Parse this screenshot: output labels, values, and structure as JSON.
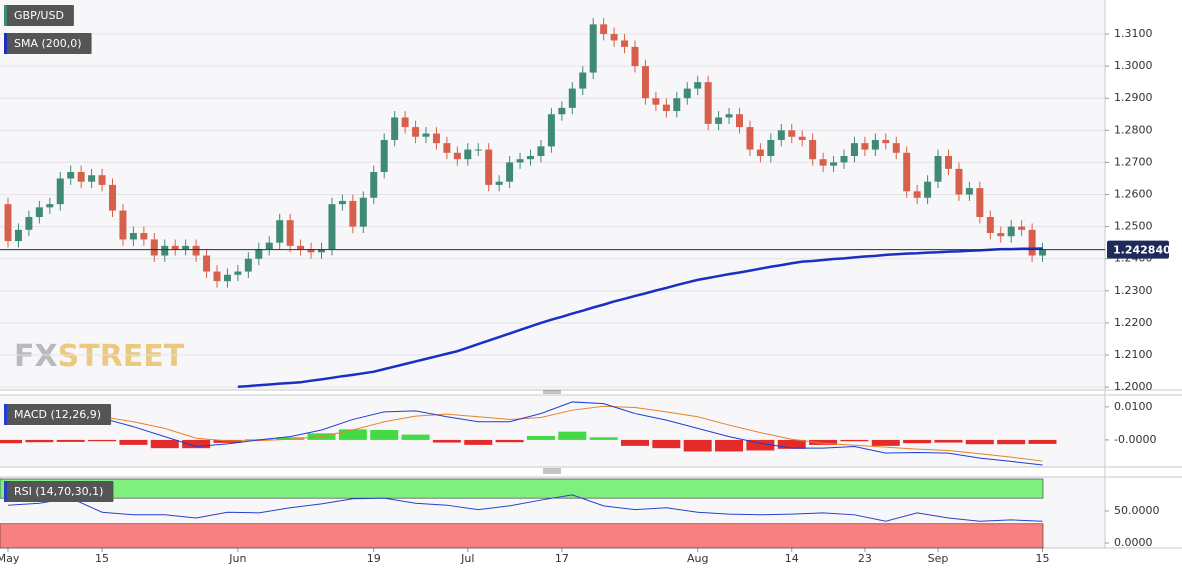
{
  "chart_data": [
    {
      "type": "candlestick",
      "name": "GBP/USD",
      "categories": [
        "May",
        null,
        null,
        null,
        null,
        null,
        null,
        null,
        null,
        "15",
        null,
        null,
        null,
        null,
        null,
        null,
        null,
        null,
        null,
        null,
        null,
        null,
        "Jun",
        null,
        null,
        null,
        null,
        null,
        null,
        null,
        null,
        null,
        null,
        null,
        null,
        "19",
        null,
        null,
        null,
        null,
        null,
        null,
        null,
        null,
        "Jul",
        null,
        null,
        null,
        null,
        null,
        null,
        null,
        null,
        "17",
        null,
        null,
        null,
        null,
        null,
        null,
        null,
        null,
        null,
        null,
        null,
        null,
        "Aug",
        null,
        null,
        null,
        null,
        null,
        null,
        null,
        null,
        "14",
        null,
        null,
        null,
        null,
        null,
        null,
        "23",
        null,
        null,
        null,
        null,
        null,
        null,
        "Sep",
        null,
        null,
        null,
        null,
        null,
        null,
        null,
        null,
        null,
        "15"
      ],
      "open": [
        1.257,
        1.2455,
        1.249,
        1.253,
        1.256,
        1.257,
        1.265,
        1.267,
        1.264,
        1.266,
        1.263,
        1.255,
        1.246,
        1.248,
        1.246,
        1.241,
        1.244,
        1.243,
        1.244,
        1.241,
        1.236,
        1.233,
        1.235,
        1.236,
        1.24,
        1.243,
        1.245,
        1.252,
        1.244,
        1.243,
        1.242,
        1.243,
        1.257,
        1.258,
        1.25,
        1.259,
        1.267,
        1.277,
        1.284,
        1.281,
        1.278,
        1.279,
        1.276,
        1.273,
        1.271,
        1.274,
        1.274,
        1.263,
        1.264,
        1.27,
        1.271,
        1.272,
        1.275,
        1.285,
        1.287,
        1.293,
        1.298,
        1.313,
        1.31,
        1.308,
        1.306,
        1.3,
        1.29,
        1.288,
        1.286,
        1.29,
        1.293,
        1.295,
        1.282,
        1.284,
        1.285,
        1.281,
        1.274,
        1.272,
        1.277,
        1.28,
        1.278,
        1.277,
        1.271,
        1.269,
        1.27,
        1.272,
        1.276,
        1.274,
        1.277,
        1.276,
        1.273,
        1.261,
        1.259,
        1.264,
        1.272,
        1.268,
        1.26,
        1.262,
        1.253,
        1.248,
        1.247,
        1.25,
        1.249,
        1.241
      ],
      "high": [
        1.259,
        1.251,
        1.255,
        1.258,
        1.259,
        1.267,
        1.269,
        1.269,
        1.268,
        1.268,
        1.265,
        1.257,
        1.25,
        1.25,
        1.248,
        1.246,
        1.246,
        1.246,
        1.246,
        1.243,
        1.238,
        1.237,
        1.238,
        1.242,
        1.245,
        1.247,
        1.254,
        1.254,
        1.246,
        1.245,
        1.245,
        1.259,
        1.26,
        1.26,
        1.261,
        1.269,
        1.279,
        1.286,
        1.286,
        1.283,
        1.281,
        1.281,
        1.278,
        1.275,
        1.276,
        1.276,
        1.276,
        1.266,
        1.272,
        1.273,
        1.274,
        1.277,
        1.287,
        1.289,
        1.295,
        1.3,
        1.315,
        1.315,
        1.312,
        1.31,
        1.308,
        1.302,
        1.292,
        1.29,
        1.292,
        1.295,
        1.297,
        1.297,
        1.286,
        1.287,
        1.287,
        1.283,
        1.276,
        1.279,
        1.282,
        1.282,
        1.28,
        1.279,
        1.273,
        1.272,
        1.274,
        1.278,
        1.278,
        1.279,
        1.279,
        1.278,
        1.275,
        1.263,
        1.266,
        1.274,
        1.274,
        1.27,
        1.264,
        1.264,
        1.255,
        1.25,
        1.252,
        1.252,
        1.251,
        1.245
      ],
      "low": [
        1.2435,
        1.2435,
        1.247,
        1.251,
        1.254,
        1.255,
        1.263,
        1.262,
        1.262,
        1.261,
        1.253,
        1.244,
        1.244,
        1.244,
        1.239,
        1.239,
        1.241,
        1.241,
        1.239,
        1.234,
        1.231,
        1.231,
        1.233,
        1.234,
        1.238,
        1.241,
        1.243,
        1.242,
        1.241,
        1.24,
        1.24,
        1.241,
        1.255,
        1.248,
        1.248,
        1.257,
        1.265,
        1.275,
        1.279,
        1.276,
        1.276,
        1.274,
        1.271,
        1.269,
        1.269,
        1.272,
        1.261,
        1.261,
        1.262,
        1.268,
        1.269,
        1.27,
        1.273,
        1.283,
        1.285,
        1.291,
        1.296,
        1.308,
        1.306,
        1.304,
        1.298,
        1.288,
        1.286,
        1.284,
        1.284,
        1.288,
        1.291,
        1.28,
        1.28,
        1.282,
        1.279,
        1.272,
        1.27,
        1.27,
        1.275,
        1.276,
        1.275,
        1.269,
        1.267,
        1.267,
        1.268,
        1.27,
        1.272,
        1.272,
        1.274,
        1.271,
        1.259,
        1.257,
        1.257,
        1.262,
        1.266,
        1.258,
        1.258,
        1.251,
        1.246,
        1.245,
        1.245,
        1.247,
        1.239,
        1.239
      ],
      "close": [
        1.2455,
        1.249,
        1.253,
        1.256,
        1.257,
        1.265,
        1.267,
        1.264,
        1.266,
        1.263,
        1.255,
        1.246,
        1.248,
        1.246,
        1.241,
        1.244,
        1.243,
        1.244,
        1.241,
        1.236,
        1.233,
        1.235,
        1.236,
        1.24,
        1.243,
        1.245,
        1.252,
        1.244,
        1.243,
        1.242,
        1.243,
        1.257,
        1.258,
        1.25,
        1.259,
        1.267,
        1.277,
        1.284,
        1.281,
        1.278,
        1.279,
        1.276,
        1.273,
        1.271,
        1.274,
        1.274,
        1.263,
        1.264,
        1.27,
        1.271,
        1.272,
        1.275,
        1.285,
        1.287,
        1.293,
        1.298,
        1.313,
        1.31,
        1.308,
        1.306,
        1.3,
        1.29,
        1.288,
        1.286,
        1.29,
        1.293,
        1.295,
        1.282,
        1.284,
        1.285,
        1.281,
        1.274,
        1.272,
        1.277,
        1.28,
        1.278,
        1.277,
        1.271,
        1.269,
        1.27,
        1.272,
        1.276,
        1.274,
        1.277,
        1.276,
        1.273,
        1.261,
        1.259,
        1.264,
        1.272,
        1.268,
        1.26,
        1.262,
        1.253,
        1.248,
        1.247,
        1.25,
        1.249,
        1.241,
        1.24284
      ],
      "up_color": "#3f8a74",
      "down_color": "#d6604c",
      "series": [
        {
          "name": "SMA (200,0)",
          "color": "#1b2fc2",
          "values": [
            null,
            null,
            null,
            null,
            null,
            null,
            null,
            null,
            null,
            null,
            null,
            null,
            null,
            null,
            null,
            null,
            null,
            null,
            null,
            null,
            null,
            null,
            1.2001,
            1.2003,
            1.2006,
            1.2008,
            1.2011,
            1.2013,
            1.2015,
            1.202,
            1.2024,
            1.2029,
            1.2034,
            1.2038,
            1.2043,
            1.2048,
            1.2056,
            1.2064,
            1.2072,
            1.208,
            1.2088,
            1.2096,
            1.2104,
            1.2112,
            1.2123,
            1.2134,
            1.2145,
            1.2156,
            1.2167,
            1.2178,
            1.2189,
            1.22,
            1.221,
            1.2219,
            1.2229,
            1.2238,
            1.2248,
            1.2257,
            1.2267,
            1.2275,
            1.2284,
            1.2292,
            1.2301,
            1.2309,
            1.2318,
            1.2326,
            1.2334,
            1.234,
            1.2346,
            1.2352,
            1.2357,
            1.2363,
            1.2369,
            1.2375,
            1.238,
            1.2386,
            1.2391,
            1.2393,
            1.2396,
            1.2399,
            1.2401,
            1.2404,
            1.2407,
            1.2409,
            1.2412,
            1.2414,
            1.2416,
            1.2417,
            1.2419,
            1.242,
            1.2422,
            1.2423,
            1.2425,
            1.2426,
            1.2428,
            1.243,
            1.243,
            1.2431,
            1.2431,
            1.2432
          ]
        }
      ],
      "last_price": {
        "value": 1.24284,
        "label": "1.242840"
      },
      "ylim": [
        1.1991,
        1.3206
      ],
      "yticks": [
        {
          "value": 1.2,
          "label": "1.2000"
        },
        {
          "value": 1.21,
          "label": "1.2100"
        },
        {
          "value": 1.22,
          "label": "1.2200"
        },
        {
          "value": 1.23,
          "label": "1.2300"
        },
        {
          "value": 1.24,
          "label": "1.2400"
        },
        {
          "value": 1.25,
          "label": "1.2500"
        },
        {
          "value": 1.26,
          "label": "1.2600"
        },
        {
          "value": 1.27,
          "label": "1.2700"
        },
        {
          "value": 1.28,
          "label": "1.2800"
        },
        {
          "value": 1.29,
          "label": "1.2900"
        },
        {
          "value": 1.3,
          "label": "1.3000"
        },
        {
          "value": 1.31,
          "label": "1.3100"
        }
      ],
      "grid": true,
      "watermark": {
        "prefix": "FX",
        "suffix": "STREET"
      }
    },
    {
      "type": "macd",
      "name": "MACD (12,26,9)",
      "x": [
        0,
        3,
        6,
        9,
        12,
        15,
        18,
        21,
        24,
        27,
        30,
        33,
        36,
        39,
        42,
        45,
        48,
        51,
        54,
        57,
        60,
        63,
        66,
        69,
        72,
        75,
        78,
        81,
        84,
        87,
        90,
        93,
        96,
        99
      ],
      "xlim": [
        -0.77,
        104.98
      ],
      "macd": {
        "color": "#1d3ed4",
        "values": [
          0.008,
          0.0078,
          0.0072,
          0.0066,
          0.004,
          0.001,
          -0.002,
          -0.0012,
          0.0,
          0.001,
          0.003,
          0.0062,
          0.0085,
          0.0088,
          0.007,
          0.0055,
          0.0055,
          0.008,
          0.0115,
          0.011,
          0.008,
          0.006,
          0.0035,
          0.001,
          -0.001,
          -0.0025,
          -0.0025,
          -0.002,
          -0.004,
          -0.0038,
          -0.004,
          -0.0055,
          -0.0065,
          -0.0076
        ]
      },
      "signal": {
        "color": "#e8812a",
        "values": [
          0.009,
          0.0085,
          0.0078,
          0.007,
          0.0055,
          0.0035,
          0.0005,
          -0.0003,
          -0.0002,
          0.0002,
          0.001,
          0.003,
          0.0055,
          0.0072,
          0.0078,
          0.007,
          0.0062,
          0.0068,
          0.009,
          0.0102,
          0.0098,
          0.0085,
          0.007,
          0.0045,
          0.0022,
          0.0002,
          -0.001,
          -0.0016,
          -0.0022,
          -0.0028,
          -0.0032,
          -0.0042,
          -0.0052,
          -0.0064
        ]
      },
      "histogram": {
        "up_color": "#2fd62f",
        "down_color": "#e01414",
        "values": [
          -0.001,
          -0.0007,
          -0.0006,
          -0.0004,
          -0.0015,
          -0.0025,
          -0.0025,
          -0.0009,
          0.0002,
          0.0008,
          0.002,
          0.0032,
          0.003,
          0.0016,
          -0.0008,
          -0.0015,
          -0.0007,
          0.0012,
          0.0025,
          0.0008,
          -0.0018,
          -0.0025,
          -0.0035,
          -0.0035,
          -0.0032,
          -0.0027,
          -0.0015,
          -0.0004,
          -0.0018,
          -0.001,
          -0.0008,
          -0.0013,
          -0.0013,
          -0.0012
        ]
      },
      "ylim": [
        -0.0082,
        0.0136
      ],
      "yticks": [
        {
          "value": 0,
          "label": "-0.0000"
        },
        {
          "value": 0.01,
          "label": "0.0100"
        }
      ]
    },
    {
      "type": "rsi",
      "name": "RSI (14,70,30,1)",
      "x": [
        0,
        3,
        6,
        9,
        12,
        15,
        18,
        21,
        24,
        27,
        30,
        33,
        36,
        39,
        42,
        45,
        48,
        51,
        54,
        57,
        60,
        63,
        66,
        69,
        72,
        75,
        78,
        81,
        84,
        87,
        90,
        93,
        96,
        99
      ],
      "xlim": [
        -0.77,
        104.98
      ],
      "color": "#2a3fc8",
      "values": [
        59,
        62,
        70,
        48,
        44,
        44,
        39,
        48,
        47,
        55,
        61,
        69,
        70,
        62,
        59,
        52,
        58,
        67,
        75,
        58,
        52,
        55,
        48,
        45,
        44,
        45,
        47,
        44,
        34,
        47,
        39,
        34,
        36,
        34
      ],
      "overbought": 70,
      "overbought_color": "#7ef07e",
      "oversold": 30,
      "oversold_color": "#f98080",
      "ylim": [
        -7.8,
        103
      ],
      "yticks": [
        {
          "value": 0,
          "label": "0.0000"
        },
        {
          "value": 50,
          "label": "50.0000"
        }
      ]
    }
  ]
}
